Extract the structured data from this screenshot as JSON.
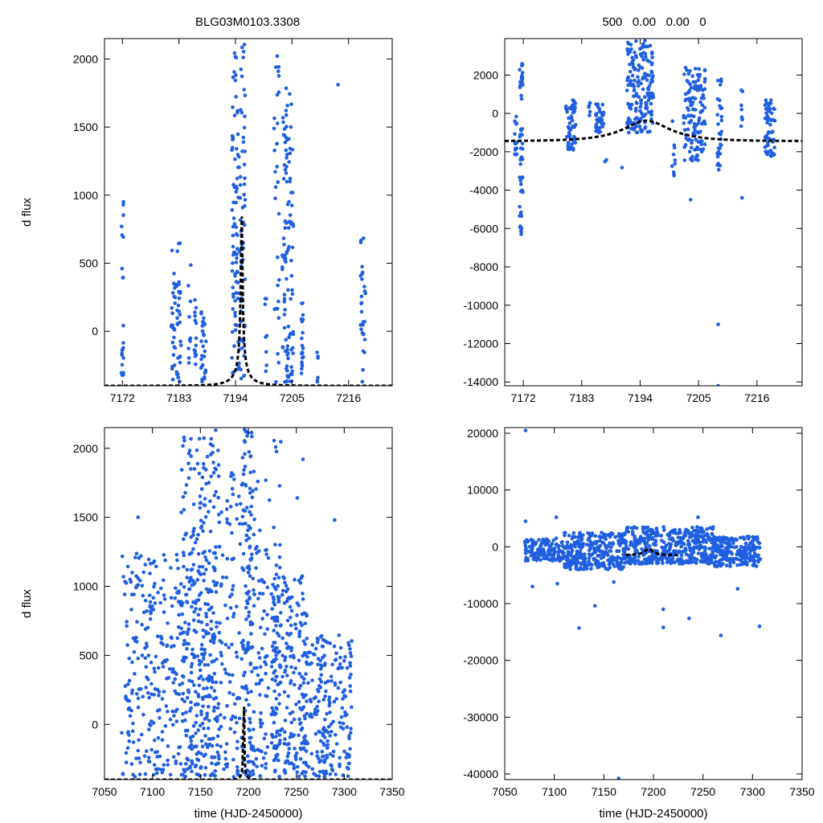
{
  "figure": {
    "title_left": "BLG03M0103.3308",
    "title_right": "500   0.00   0.00   0"
  },
  "chart_data": [
    {
      "id": "tl",
      "type": "scatter",
      "ylabel": "d flux",
      "xlabel": "",
      "xlim": [
        7168.5,
        7224.5
      ],
      "ylim": [
        -400,
        2150
      ],
      "xticks": [
        7172,
        7183,
        7194,
        7205,
        7216
      ],
      "yticks": [
        0,
        500,
        1000,
        1500,
        2000
      ],
      "model": {
        "t0": 7195.2,
        "u0": 0.03,
        "tE": 4.7,
        "fs": 40,
        "base": -400
      },
      "clusters": [
        {
          "x0": 7171.8,
          "x1": 7172.2,
          "n": 22,
          "ylo": -350,
          "yhi": 1030
        },
        {
          "x0": 7181.5,
          "x1": 7183.4,
          "n": 60,
          "ylo": -370,
          "yhi": 670
        },
        {
          "x0": 7184.8,
          "x1": 7185.3,
          "n": 10,
          "ylo": -300,
          "yhi": 560
        },
        {
          "x0": 7185.8,
          "x1": 7186.4,
          "n": 14,
          "ylo": -250,
          "yhi": 300
        },
        {
          "x0": 7187.3,
          "x1": 7188.3,
          "n": 28,
          "ylo": -370,
          "yhi": 160
        },
        {
          "x0": 7193.3,
          "x1": 7195.9,
          "n": 140,
          "ylo": -380,
          "yhi": 2130
        },
        {
          "x0": 7199.7,
          "x1": 7200.1,
          "n": 8,
          "ylo": -380,
          "yhi": 300
        },
        {
          "x0": 7201.5,
          "x1": 7202.5,
          "n": 30,
          "ylo": -380,
          "yhi": 2140
        },
        {
          "x0": 7203.1,
          "x1": 7205.3,
          "n": 110,
          "ylo": -380,
          "yhi": 1800
        },
        {
          "x0": 7206.8,
          "x1": 7207.2,
          "n": 20,
          "ylo": -380,
          "yhi": 240
        },
        {
          "x0": 7209.8,
          "x1": 7210.2,
          "n": 6,
          "ylo": -380,
          "yhi": -150
        },
        {
          "x0": 7213.9,
          "x1": 7214.1,
          "n": 1,
          "ylo": 1810,
          "yhi": 1830
        },
        {
          "x0": 7218.3,
          "x1": 7219.3,
          "n": 28,
          "ylo": -380,
          "yhi": 720
        }
      ]
    },
    {
      "id": "tr",
      "type": "scatter",
      "ylabel": "",
      "xlabel": "",
      "xlim": [
        7168.5,
        7224.5
      ],
      "ylim": [
        -14200,
        3900
      ],
      "xticks": [
        7172,
        7183,
        7194,
        7205,
        7216
      ],
      "yticks": [
        2000,
        0,
        -2000,
        -4000,
        -6000,
        -8000,
        -10000,
        -12000,
        -14000
      ],
      "model": {
        "t0": 7195.2,
        "u0": 0.55,
        "tE": 8.5,
        "fs": 1050,
        "base": -1450
      },
      "clusters": [
        {
          "x0": 7170.3,
          "x1": 7170.8,
          "n": 15,
          "ylo": -2200,
          "yhi": 200
        },
        {
          "x0": 7171.3,
          "x1": 7171.9,
          "n": 55,
          "ylo": -6300,
          "yhi": 2600
        },
        {
          "x0": 7180.0,
          "x1": 7181.9,
          "n": 60,
          "ylo": -1900,
          "yhi": 700
        },
        {
          "x0": 7184.2,
          "x1": 7184.8,
          "n": 6,
          "ylo": -300,
          "yhi": 600
        },
        {
          "x0": 7185.6,
          "x1": 7187.2,
          "n": 40,
          "ylo": -1000,
          "yhi": 500
        },
        {
          "x0": 7187.3,
          "x1": 7187.7,
          "n": 2,
          "ylo": -2600,
          "yhi": -2400
        },
        {
          "x0": 7190.2,
          "x1": 7190.6,
          "n": 1,
          "ylo": -2900,
          "yhi": -2800
        },
        {
          "x0": 7191.5,
          "x1": 7196.5,
          "n": 180,
          "ylo": -1000,
          "yhi": 3800
        },
        {
          "x0": 7200.0,
          "x1": 7200.8,
          "n": 10,
          "ylo": -3800,
          "yhi": 200
        },
        {
          "x0": 7202.2,
          "x1": 7206.3,
          "n": 130,
          "ylo": -2500,
          "yhi": 2400
        },
        {
          "x0": 7208.5,
          "x1": 7209.5,
          "n": 30,
          "ylo": -3000,
          "yhi": 1800
        },
        {
          "x0": 7213.0,
          "x1": 7213.4,
          "n": 8,
          "ylo": -1400,
          "yhi": 1800
        },
        {
          "x0": 7217.5,
          "x1": 7219.4,
          "n": 60,
          "ylo": -2300,
          "yhi": 700
        }
      ],
      "outliers": [
        [
          7203.5,
          -4500
        ],
        [
          7208.7,
          -11000
        ],
        [
          7208.7,
          -14200
        ],
        [
          7213.2,
          -4400
        ]
      ]
    },
    {
      "id": "bl",
      "type": "scatter",
      "ylabel": "d flux",
      "xlabel": "time (HJD-2450000)",
      "xlim": [
        7050,
        7350
      ],
      "ylim": [
        -400,
        2150
      ],
      "xticks": [
        7050,
        7100,
        7150,
        7200,
        7250,
        7300,
        7350
      ],
      "yticks": [
        0,
        500,
        1000,
        1500,
        2000
      ],
      "model": {
        "t0": 7195.2,
        "u0": 0.03,
        "tE": 4.7,
        "fs": 40,
        "base": -400
      },
      "clusters": [
        {
          "x0": 7068,
          "x1": 7172,
          "n": 420,
          "ylo": -380,
          "yhi": 1250
        },
        {
          "x0": 7130,
          "x1": 7170,
          "n": 220,
          "ylo": -380,
          "yhi": 2140
        },
        {
          "x0": 7172,
          "x1": 7192,
          "n": 80,
          "ylo": -380,
          "yhi": 1850
        },
        {
          "x0": 7193,
          "x1": 7206,
          "n": 140,
          "ylo": -380,
          "yhi": 2140
        },
        {
          "x0": 7206,
          "x1": 7222,
          "n": 70,
          "ylo": -380,
          "yhi": 1800
        },
        {
          "x0": 7224,
          "x1": 7262,
          "n": 240,
          "ylo": -380,
          "yhi": 1100
        },
        {
          "x0": 7226,
          "x1": 7234,
          "n": 40,
          "ylo": -380,
          "yhi": 2080
        },
        {
          "x0": 7262,
          "x1": 7308,
          "n": 200,
          "ylo": -380,
          "yhi": 650
        }
      ],
      "outliers": [
        [
          7085,
          1500
        ],
        [
          7257,
          1920
        ],
        [
          7251,
          1640
        ],
        [
          7290,
          1480
        ],
        [
          7140,
          1850
        ]
      ]
    },
    {
      "id": "br",
      "type": "scatter",
      "ylabel": "",
      "xlabel": "time (HJD-2450000)",
      "xlim": [
        7050,
        7350
      ],
      "ylim": [
        -41000,
        21000
      ],
      "xticks": [
        7050,
        7100,
        7150,
        7200,
        7250,
        7300,
        7350
      ],
      "yticks": [
        20000,
        10000,
        0,
        -10000,
        -20000,
        -30000,
        -40000
      ],
      "model": {
        "t0": 7195.2,
        "u0": 0.55,
        "tE": 8.5,
        "fs": 1050,
        "base": -1450,
        "xmin": 7172,
        "xmax": 7224
      },
      "clusters": [
        {
          "x0": 7070,
          "x1": 7110,
          "n": 140,
          "ylo": -2500,
          "yhi": 1500
        },
        {
          "x0": 7110,
          "x1": 7172,
          "n": 300,
          "ylo": -4000,
          "yhi": 2500
        },
        {
          "x0": 7172,
          "x1": 7224,
          "n": 240,
          "ylo": -3000,
          "yhi": 3500
        },
        {
          "x0": 7224,
          "x1": 7262,
          "n": 200,
          "ylo": -3000,
          "yhi": 3500
        },
        {
          "x0": 7262,
          "x1": 7308,
          "n": 220,
          "ylo": -3500,
          "yhi": 1800
        }
      ],
      "outliers": [
        [
          7071,
          20500
        ],
        [
          7071,
          4500
        ],
        [
          7078,
          -7000
        ],
        [
          7102,
          5200
        ],
        [
          7125,
          -14300
        ],
        [
          7141,
          -10400
        ],
        [
          7165,
          -40800
        ],
        [
          7210,
          -11000
        ],
        [
          7210,
          -14200
        ],
        [
          7236,
          -12600
        ],
        [
          7245,
          5200
        ],
        [
          7268,
          -15600
        ],
        [
          7285,
          -7400
        ],
        [
          7307,
          -14000
        ],
        [
          7103,
          -6500
        ],
        [
          7160,
          -6200
        ]
      ]
    }
  ]
}
